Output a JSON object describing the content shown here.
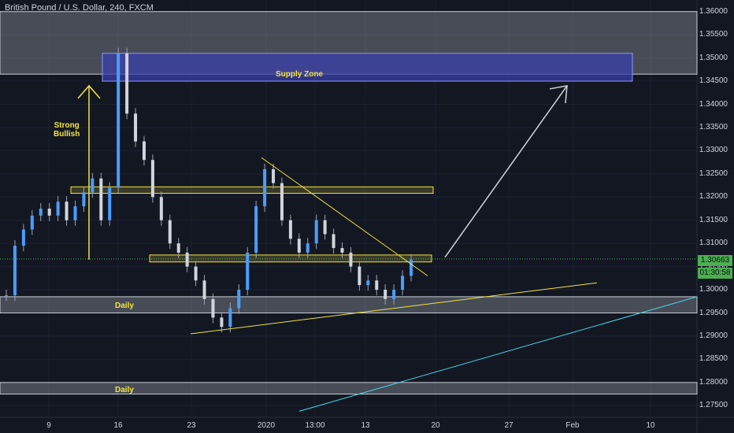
{
  "title": "British Pound / U.S. Dollar, 240, FXCM",
  "current_price": "1.30663",
  "countdown": "01:30:58",
  "colors": {
    "background": "#131722",
    "grid": "#1e2230",
    "candle": "#4a9eff",
    "zone": "#8a8f99",
    "supply": "#3b3faa",
    "trend_yellow": "#f0e442",
    "trend_cyan": "#48d6e8",
    "arrow": "#d1d4dc",
    "current_price_line": "#4caf50"
  },
  "chart_data": {
    "type": "candlestick",
    "price_axis": {
      "min": 1.2725,
      "max": 1.3625,
      "ticks": [
        "1.36000",
        "1.35500",
        "1.35000",
        "1.34500",
        "1.34000",
        "1.33500",
        "1.33000",
        "1.32500",
        "1.32000",
        "1.31500",
        "1.31000",
        "1.30500",
        "1.30000",
        "1.29500",
        "1.29000",
        "1.28500",
        "1.28000",
        "1.27500"
      ]
    },
    "time_axis": {
      "labels": [
        "9",
        "16",
        "23",
        "2020",
        "13:00",
        "13",
        "20",
        "27",
        "Feb",
        "10"
      ]
    },
    "candles_close_approx": [
      1.2988,
      1.3095,
      1.313,
      1.316,
      1.3175,
      1.316,
      1.319,
      1.315,
      1.318,
      1.321,
      1.324,
      1.315,
      1.322,
      1.351,
      1.338,
      1.332,
      1.328,
      1.32,
      1.315,
      1.31,
      1.308,
      1.305,
      1.302,
      1.298,
      1.294,
      1.292,
      1.296,
      1.3,
      1.308,
      1.318,
      1.326,
      1.323,
      1.315,
      1.311,
      1.308,
      1.31,
      1.315,
      1.312,
      1.309,
      1.308,
      1.305,
      1.301,
      1.302,
      1.3,
      1.298,
      1.3,
      1.303,
      1.3065
    ],
    "annotations": [
      {
        "text": "Supply Zone",
        "kind": "zone",
        "price_range": [
          1.345,
          1.351
        ]
      },
      {
        "text": "Strong Bullish",
        "kind": "label"
      },
      {
        "text": "Daily",
        "kind": "zone",
        "price_range": [
          1.295,
          1.2985
        ]
      },
      {
        "text": "Daily",
        "kind": "zone",
        "price_range": [
          1.2775,
          1.28
        ]
      }
    ],
    "levels": [
      1.3065,
      1.3215
    ],
    "trendlines": [
      {
        "color": "yellow",
        "from_price": 1.3285,
        "to_price": 1.303
      },
      {
        "color": "yellow",
        "from_price": 1.2905,
        "to_price": 1.3015
      },
      {
        "color": "cyan",
        "from_price": 1.27,
        "to_price": 1.2985
      }
    ]
  },
  "labels": {
    "strong_bullish_line1": "Strong",
    "strong_bullish_line2": "Bullish",
    "supply_zone": "Supply Zone",
    "daily_1": "Daily",
    "daily_2": "Daily"
  }
}
